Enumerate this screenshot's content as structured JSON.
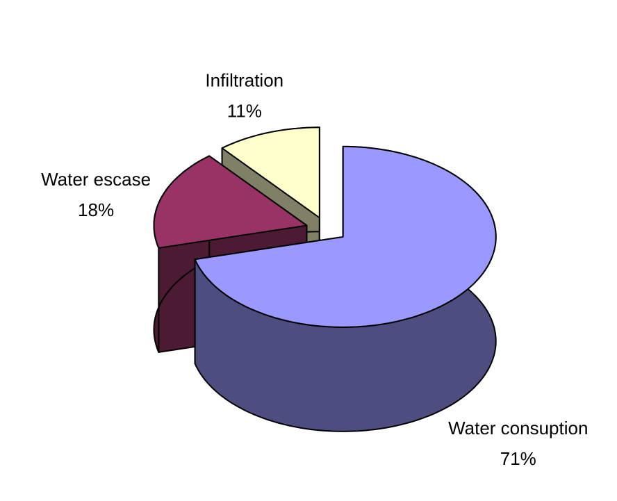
{
  "chart_data": {
    "type": "pie",
    "categories": [
      "Water consuption",
      "Water escase",
      "Infiltration"
    ],
    "values": [
      71,
      18,
      11
    ],
    "value_labels": [
      "71%",
      "18%",
      "11%"
    ],
    "colors": [
      "#9999ff",
      "#993366",
      "#ffffcc"
    ]
  }
}
